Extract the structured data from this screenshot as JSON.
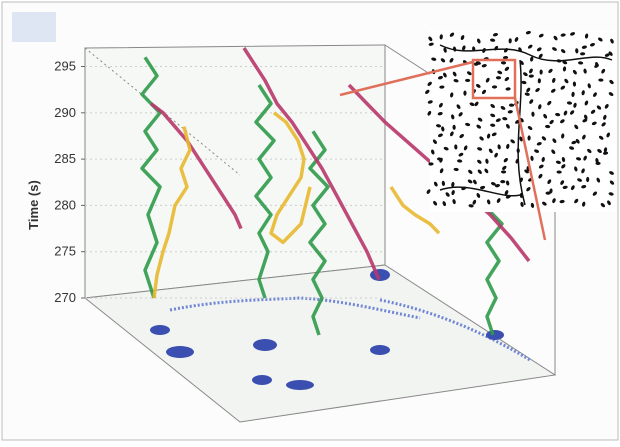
{
  "chart_data": {
    "type": "trajectory3d",
    "ylabel": "Time (s)",
    "ylim": [
      270,
      297
    ],
    "yticks": [
      270,
      275,
      280,
      285,
      290,
      295
    ],
    "xlim": [
      0,
      160
    ],
    "grid": true,
    "series": [
      {
        "color": "#2f9a4a",
        "x": [
          20,
          24,
          19,
          25,
          20,
          24,
          19,
          25,
          21,
          24,
          20,
          23
        ],
        "values": [
          296,
          294,
          292,
          290,
          288,
          286,
          284,
          282,
          279,
          276,
          273,
          270
        ]
      },
      {
        "color": "#2f9a4a",
        "x": [
          58,
          62,
          57,
          63,
          58,
          62,
          57,
          62,
          58,
          61,
          58,
          60
        ],
        "values": [
          293,
          291,
          289,
          287,
          285,
          283,
          281,
          279,
          277,
          275,
          272,
          270
        ]
      },
      {
        "color": "#2f9a4a",
        "x": [
          76,
          80,
          75,
          81,
          76,
          80,
          75,
          80,
          76,
          79,
          76,
          78
        ],
        "values": [
          288,
          286,
          284,
          282,
          280,
          278,
          276,
          274,
          272,
          270,
          268,
          266
        ]
      },
      {
        "color": "#2f9a4a",
        "x": [
          134,
          138,
          133,
          139,
          134,
          138,
          134,
          137,
          134,
          136
        ],
        "values": [
          284,
          282,
          280,
          278,
          276,
          274,
          272,
          270,
          268,
          266
        ]
      },
      {
        "color": "#b8366b",
        "x": [
          22,
          26,
          30,
          34,
          38,
          42,
          46,
          50,
          52
        ],
        "values": [
          291,
          290,
          288.5,
          287,
          285,
          283,
          281,
          279,
          277.5
        ]
      },
      {
        "color": "#b8366b",
        "x": [
          53,
          56,
          60,
          64,
          69,
          74,
          79,
          84,
          89,
          94,
          98
        ],
        "values": [
          297,
          295.5,
          293.5,
          291,
          289,
          286.5,
          284,
          281,
          278,
          275,
          272
        ]
      },
      {
        "color": "#b8366b",
        "x": [
          88,
          94,
          100,
          107,
          114,
          121,
          128,
          135,
          142,
          148
        ],
        "values": [
          293,
          291,
          289,
          287,
          285,
          283,
          281,
          279,
          276.5,
          274
        ]
      },
      {
        "color": "#e8b830",
        "x": [
          33,
          35,
          32,
          34,
          30,
          28,
          26,
          24,
          23
        ],
        "values": [
          288.5,
          286,
          284,
          282,
          280,
          277,
          275,
          272.5,
          270
        ]
      },
      {
        "color": "#e8b830",
        "x": [
          63,
          67,
          71,
          73,
          72,
          68,
          64,
          62,
          66,
          72,
          75
        ],
        "values": [
          290,
          289,
          287,
          285,
          283,
          281,
          279,
          277,
          276,
          278,
          282
        ]
      },
      {
        "color": "#e8b830",
        "x": [
          102,
          106,
          110,
          115,
          118
        ],
        "values": [
          282,
          280,
          279,
          278,
          277
        ]
      }
    ]
  }
}
